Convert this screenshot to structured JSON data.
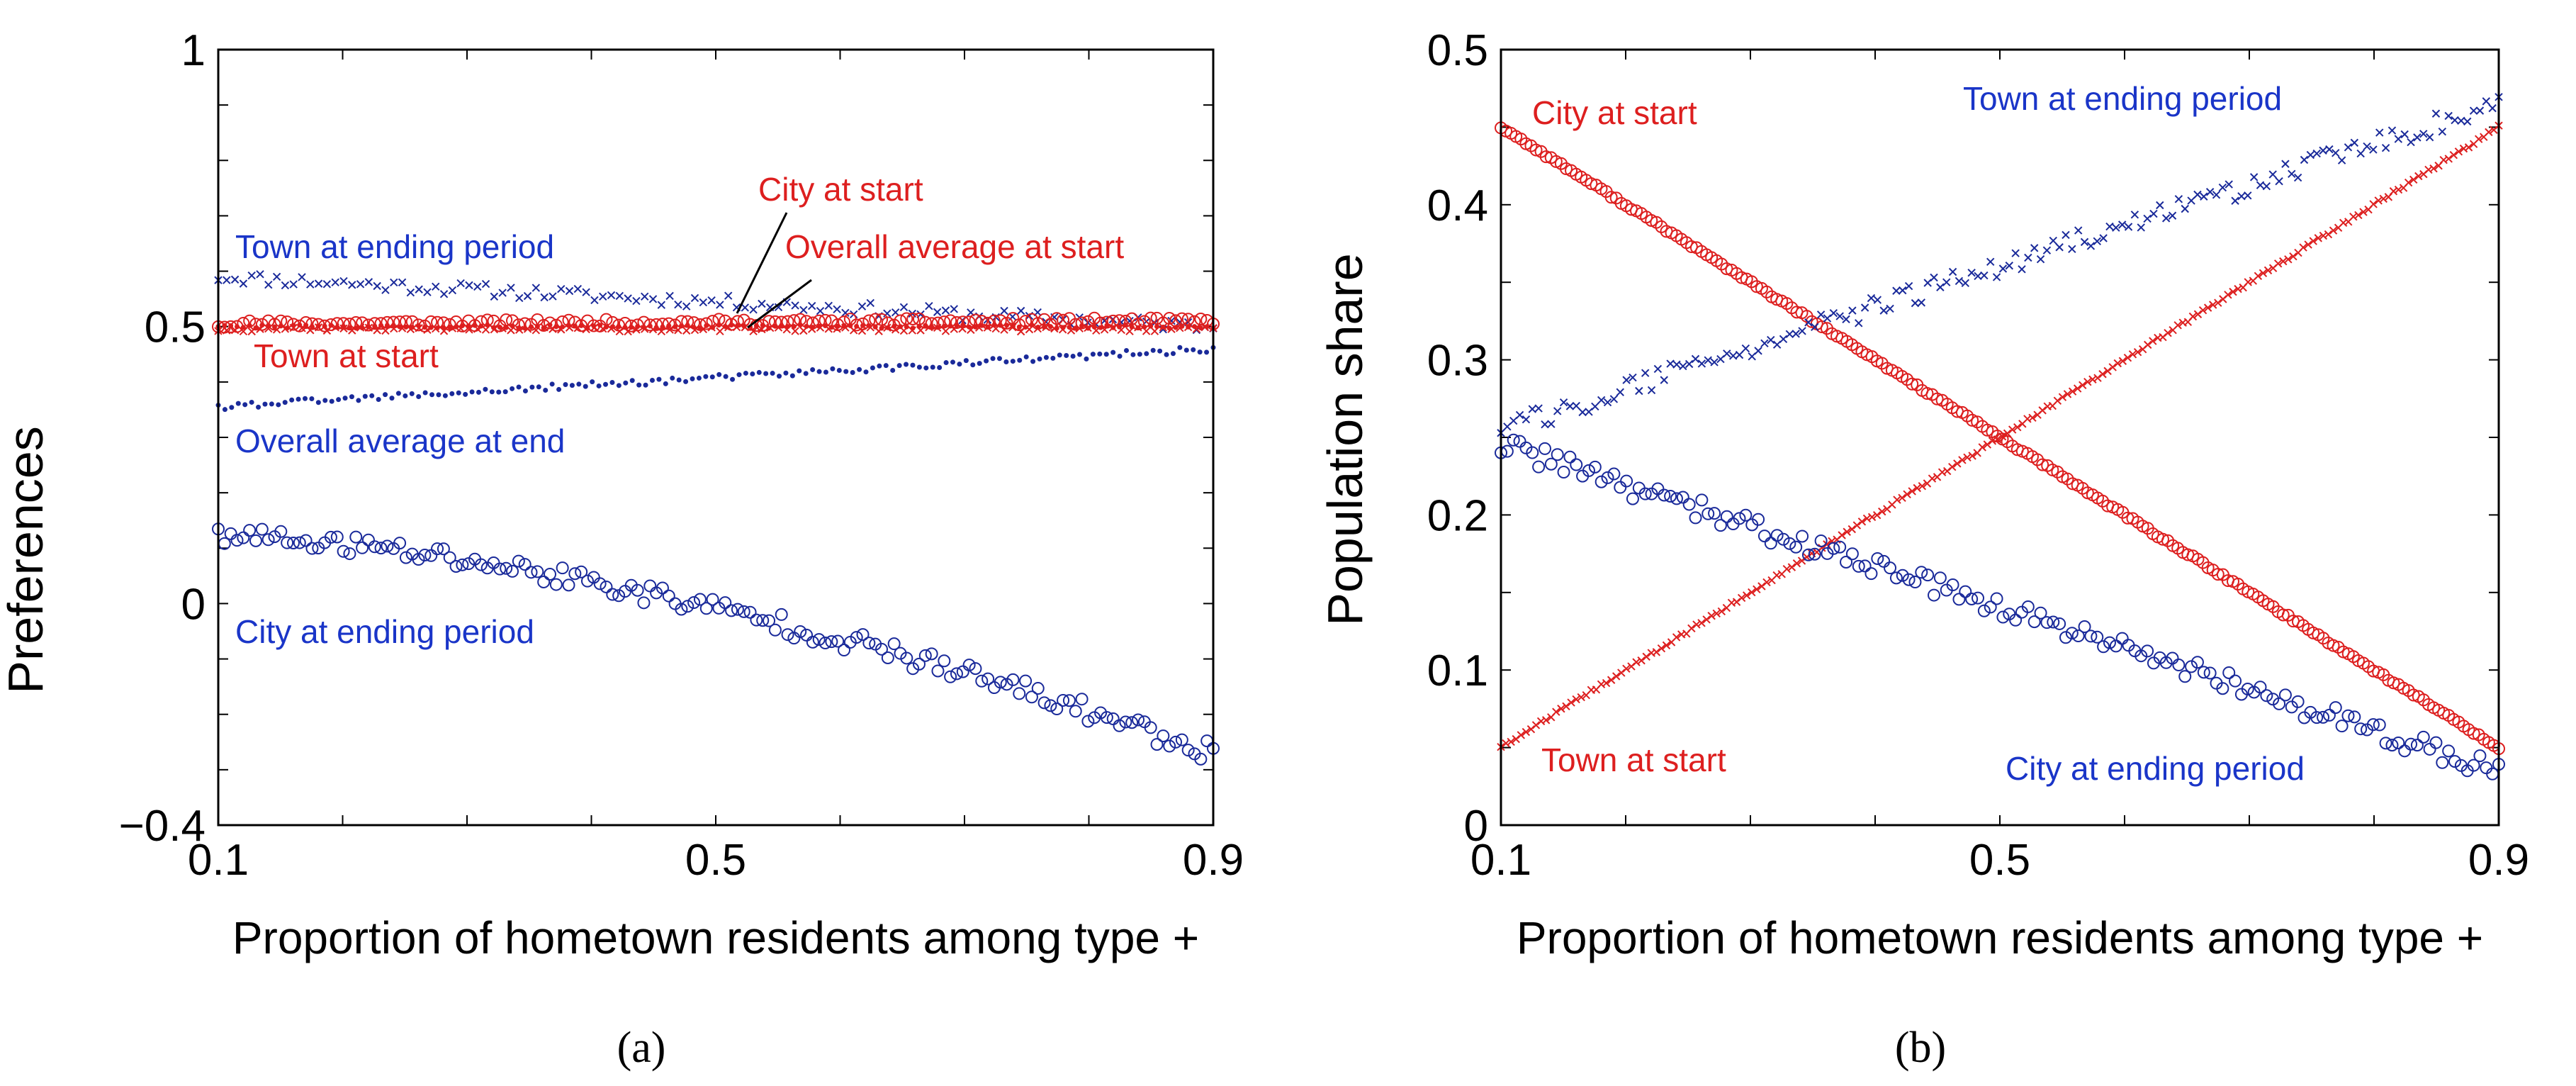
{
  "colors": {
    "red": "#dd1f1f",
    "blue": "#1a2a9a",
    "blue_text": "#1a35c8",
    "axis": "#000000"
  },
  "chart_data": [
    {
      "type": "scatter",
      "caption": "(a)",
      "xlabel": "Proportion of hometown residents among type +",
      "ylabel": "Preferences",
      "xlim": [
        0.1,
        0.9
      ],
      "ylim": [
        -0.4,
        1
      ],
      "xticks": [
        0.1,
        0.5,
        0.9
      ],
      "xtick_labels": [
        "0.1",
        "0.5",
        "0.9"
      ],
      "yticks": [
        -0.4,
        0,
        0.5,
        1
      ],
      "ytick_labels": [
        "−0.4",
        "0",
        "0.5",
        "1"
      ],
      "series": [
        {
          "name": "Town at ending period",
          "marker": "x",
          "color": "blue",
          "x_start": 0.1,
          "x_end": 0.9,
          "y_start": 0.59,
          "y_end": 0.5,
          "noise": 0.012,
          "count": 120
        },
        {
          "name": "City at start",
          "marker": "o",
          "color": "red",
          "x_start": 0.1,
          "x_end": 0.9,
          "y_start": 0.505,
          "y_end": 0.51,
          "noise": 0.006,
          "count": 160
        },
        {
          "name": "Overall average at start",
          "marker": "dot",
          "color": "red",
          "x_start": 0.1,
          "x_end": 0.9,
          "y_start": 0.5,
          "y_end": 0.5,
          "noise": 0.003,
          "count": 160
        },
        {
          "name": "Town at start",
          "marker": "x",
          "color": "red",
          "x_start": 0.1,
          "x_end": 0.9,
          "y_start": 0.495,
          "y_end": 0.495,
          "noise": 0.004,
          "count": 120
        },
        {
          "name": "Overall average at end",
          "marker": "dot",
          "color": "blue",
          "x_start": 0.1,
          "x_end": 0.9,
          "y_start": 0.355,
          "y_end": 0.46,
          "noise": 0.006,
          "count": 150
        },
        {
          "name": "City at ending period",
          "marker": "o",
          "color": "blue",
          "x_start": 0.1,
          "x_end": 0.9,
          "y_start": 0.12,
          "y_end": -0.27,
          "curve": 1.6,
          "noise": 0.02,
          "count": 160
        }
      ],
      "annotations": [
        {
          "text": "Town at ending period",
          "color": "blue"
        },
        {
          "text": "City at start",
          "color": "red"
        },
        {
          "text": "Overall average at start",
          "color": "red"
        },
        {
          "text": "Town at start",
          "color": "red"
        },
        {
          "text": "Overall average at end",
          "color": "blue"
        },
        {
          "text": "City at ending period",
          "color": "blue"
        }
      ]
    },
    {
      "type": "scatter",
      "caption": "(b)",
      "xlabel": "Proportion of hometown residents among type +",
      "ylabel": "Population share",
      "xlim": [
        0.1,
        0.9
      ],
      "ylim": [
        0,
        0.5
      ],
      "xticks": [
        0.1,
        0.5,
        0.9
      ],
      "xtick_labels": [
        "0.1",
        "0.5",
        "0.9"
      ],
      "yticks": [
        0,
        0.1,
        0.2,
        0.3,
        0.4,
        0.5
      ],
      "ytick_labels": [
        "0",
        "0.1",
        "0.2",
        "0.3",
        "0.4",
        "0.5"
      ],
      "series": [
        {
          "name": "City at start",
          "marker": "o",
          "color": "red",
          "x_start": 0.1,
          "x_end": 0.9,
          "y_start": 0.45,
          "y_end": 0.05,
          "noise": 0.001,
          "count": 200
        },
        {
          "name": "Town at start",
          "marker": "x",
          "color": "red",
          "x_start": 0.1,
          "x_end": 0.9,
          "y_start": 0.05,
          "y_end": 0.45,
          "noise": 0.001,
          "count": 200
        },
        {
          "name": "Town at ending period",
          "marker": "x",
          "color": "blue",
          "x_start": 0.1,
          "x_end": 0.9,
          "y_start": 0.255,
          "y_end": 0.465,
          "noise": 0.007,
          "count": 160
        },
        {
          "name": "City at ending period",
          "marker": "o",
          "color": "blue",
          "x_start": 0.1,
          "x_end": 0.9,
          "y_start": 0.245,
          "y_end": 0.035,
          "noise": 0.007,
          "count": 160
        }
      ],
      "annotations": [
        {
          "text": "City at start",
          "color": "red"
        },
        {
          "text": "Town at ending period",
          "color": "blue"
        },
        {
          "text": "Town at start",
          "color": "red"
        },
        {
          "text": "City at ending period",
          "color": "blue"
        }
      ]
    }
  ]
}
